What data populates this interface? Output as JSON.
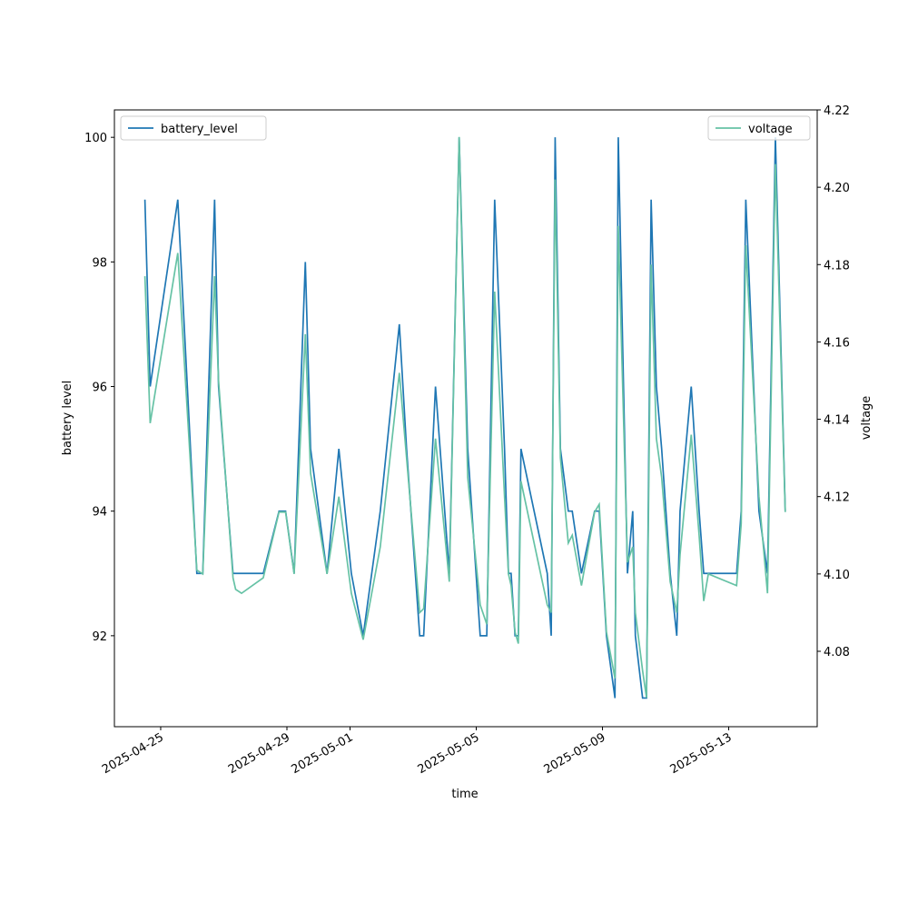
{
  "chart_data": {
    "type": "line",
    "xlabel": "time",
    "ylabel": "battery level",
    "y2label": "voltage",
    "x": [
      "2025-04-24T12:00",
      "2025-04-24T16:00",
      "2025-04-25T13:00",
      "2025-04-26T03:30",
      "2025-04-26T08:00",
      "2025-04-26T17:00",
      "2025-04-26T20:00",
      "2025-04-27T07:00",
      "2025-04-27T09:00",
      "2025-04-27T13:30",
      "2025-04-28T06:00",
      "2025-04-28T18:00",
      "2025-04-28T23:00",
      "2025-04-29T05:30",
      "2025-04-29T14:00",
      "2025-04-29T18:00",
      "2025-04-30T06:30",
      "2025-04-30T15:30",
      "2025-05-01T01:00",
      "2025-05-01T10:00",
      "2025-05-01T23:00",
      "2025-05-02T13:30",
      "2025-05-02T19:00",
      "2025-05-03T05:00",
      "2025-05-03T08:00",
      "2025-05-03T17:00",
      "2025-05-04T03:30",
      "2025-05-04T11:00",
      "2025-05-04T17:30",
      "2025-05-05T03:00",
      "2025-05-05T08:00",
      "2025-05-05T14:00",
      "2025-05-05T21:30",
      "2025-05-06T00:30",
      "2025-05-06T02:30",
      "2025-05-06T05:30",
      "2025-05-06T08:00",
      "2025-05-06T10:00",
      "2025-05-07T06:00",
      "2025-05-07T09:00",
      "2025-05-07T12:00",
      "2025-05-07T16:00",
      "2025-05-07T22:00",
      "2025-05-08T01:00",
      "2025-05-08T08:00",
      "2025-05-08T18:00",
      "2025-05-08T21:30",
      "2025-05-09T03:00",
      "2025-05-09T09:30",
      "2025-05-09T12:00",
      "2025-05-09T19:00",
      "2025-05-09T23:00",
      "2025-05-10T01:00",
      "2025-05-10T06:30",
      "2025-05-10T09:30",
      "2025-05-10T13:00",
      "2025-05-10T17:00",
      "2025-05-10T21:00",
      "2025-05-11T03:30",
      "2025-05-11T08:30",
      "2025-05-11T11:00",
      "2025-05-11T19:30",
      "2025-05-12T01:30",
      "2025-05-12T05:00",
      "2025-05-12T08:30",
      "2025-05-13T06:00",
      "2025-05-13T09:30",
      "2025-05-13T13:00",
      "2025-05-13T23:00",
      "2025-05-14T05:30",
      "2025-05-14T11:30",
      "2025-05-14T19:00"
    ],
    "series": [
      {
        "name": "battery_level",
        "color": "#1f77b4",
        "legend": "upper left",
        "values": [
          99,
          96,
          99,
          93,
          93,
          99,
          96,
          93,
          93,
          93,
          93,
          94,
          94,
          93,
          98,
          95,
          93,
          95,
          93,
          92,
          94,
          97,
          95,
          92,
          92,
          96,
          93,
          100,
          95,
          92,
          92,
          99,
          95,
          93,
          93,
          92,
          92,
          95,
          93,
          92,
          100,
          95,
          94,
          94,
          93,
          94,
          94,
          92,
          91,
          100,
          93,
          94,
          92,
          91,
          91,
          99,
          96,
          95,
          93,
          92,
          94,
          96,
          94,
          93,
          93,
          93,
          94,
          99,
          94,
          93,
          100,
          94
        ]
      },
      {
        "name": "voltage",
        "color": "#66c2a5",
        "axis": "y2",
        "legend": "upper right",
        "values": [
          4.177,
          4.139,
          4.183,
          4.101,
          4.1,
          4.177,
          4.15,
          4.099,
          4.096,
          4.095,
          4.099,
          4.116,
          4.116,
          4.1,
          4.162,
          4.126,
          4.1,
          4.12,
          4.095,
          4.083,
          4.107,
          4.152,
          4.13,
          4.09,
          4.091,
          4.135,
          4.098,
          4.213,
          4.125,
          4.092,
          4.087,
          4.173,
          4.12,
          4.1,
          4.097,
          4.085,
          4.082,
          4.124,
          4.092,
          4.09,
          4.202,
          4.13,
          4.108,
          4.11,
          4.097,
          4.116,
          4.118,
          4.085,
          4.073,
          4.19,
          4.103,
          4.107,
          4.09,
          4.075,
          4.068,
          4.18,
          4.135,
          4.125,
          4.098,
          4.09,
          4.105,
          4.136,
          4.11,
          4.093,
          4.1,
          4.097,
          4.113,
          4.185,
          4.12,
          4.095,
          4.206,
          4.116
        ]
      }
    ],
    "xlim": [
      "2025-04-23T12:48",
      "2025-05-15T19:18"
    ],
    "xticks": [
      "2025-04-25",
      "2025-04-29",
      "2025-05-01",
      "2025-05-05",
      "2025-05-09",
      "2025-05-13"
    ],
    "ylim": [
      90.54,
      100.44
    ],
    "yticks": [
      92,
      94,
      96,
      98,
      100
    ],
    "y2lim": [
      4.0605,
      4.22
    ],
    "y2ticks": [
      4.08,
      {
        "value": 4.1,
        "label": "4.10"
      },
      4.12,
      4.14,
      4.16,
      4.18,
      {
        "value": 4.2,
        "label": "4.20"
      },
      4.22
    ]
  }
}
